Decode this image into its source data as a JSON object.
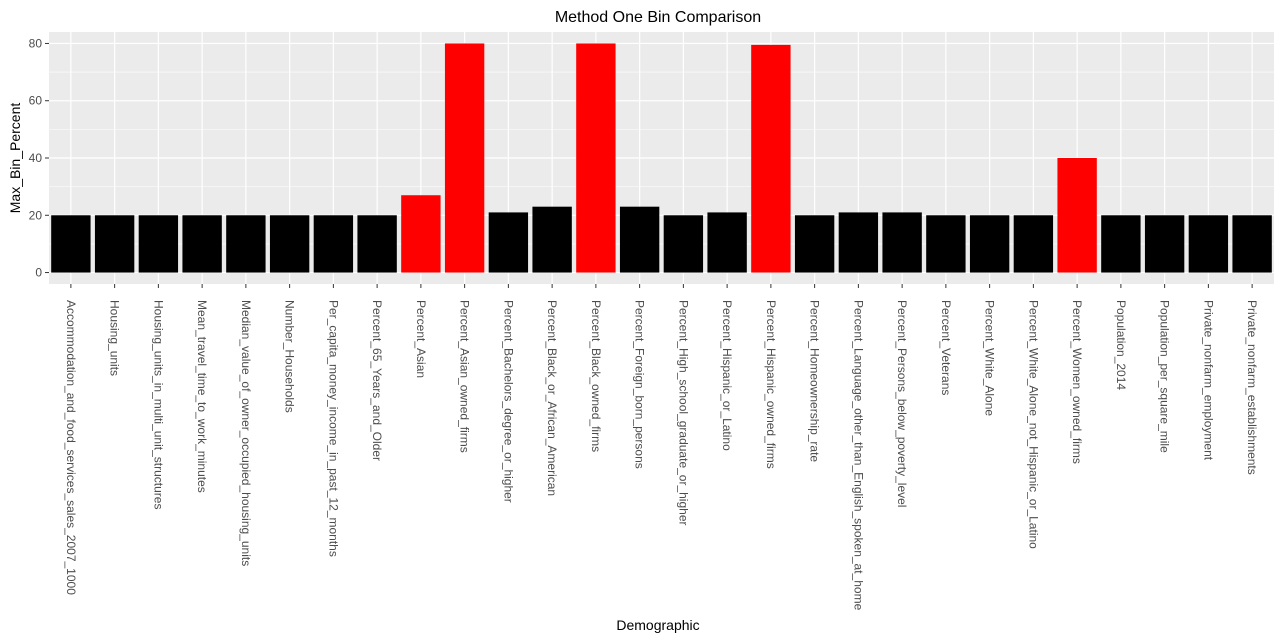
{
  "chart_data": {
    "type": "bar",
    "title": "Method One Bin Comparison",
    "xlabel": "Demographic",
    "ylabel": "Max_Bin_Percent",
    "ylim": [
      -4,
      84
    ],
    "yticks": [
      0,
      20,
      40,
      60,
      80
    ],
    "grid": true,
    "colors": {
      "panel_background": "#ebebeb",
      "grid": "#ffffff",
      "bar_default": "#000000",
      "bar_highlight": "#ff0000"
    },
    "categories": [
      "Accommodation_and_food_services_sales_2007_1000",
      "Housing_units",
      "Housing_units_in_multi_unit_structures",
      "Mean_travel_time_to_work_minutes",
      "Median_value_of_owner_occupied_housing_units",
      "Number_Households",
      "Per_capita_money_income_in_past_12_months",
      "Percent_65_Years_and_Older",
      "Percent_Asian",
      "Percent_Asian_owned_firms",
      "Percent_Bachelors_degree_or_higher",
      "Percent_Black_or_African_American",
      "Percent_Black_owned_firms",
      "Percent_Foreign_born_persons",
      "Percent_High_school_graduate_or_higher",
      "Percent_Hispanic_or_Latino",
      "Percent_Hispanic_owned_firms",
      "Percent_Homeownership_rate",
      "Percent_Language_other_than_English_spoken_at_home",
      "Percent_Persons_below_poverty_level",
      "Percent_Veterans",
      "Percent_White_Alone",
      "Percent_White_Alone_not_Hispanic_or_Latino",
      "Percent_Women_owned_firms",
      "Population_2014",
      "Population_per_square_mile",
      "Private_nonfarm_employment",
      "Private_nonfarm_establishments"
    ],
    "values": [
      20,
      20,
      20,
      20,
      20,
      20,
      20,
      20,
      27,
      80,
      21,
      23,
      80,
      23,
      20,
      21,
      79.5,
      20,
      21,
      21,
      20,
      20,
      20,
      40,
      20,
      20,
      20,
      20
    ],
    "highlighted": [
      false,
      false,
      false,
      false,
      false,
      false,
      false,
      false,
      true,
      true,
      false,
      false,
      true,
      false,
      false,
      false,
      true,
      false,
      false,
      false,
      false,
      false,
      false,
      true,
      false,
      false,
      false,
      false
    ]
  }
}
